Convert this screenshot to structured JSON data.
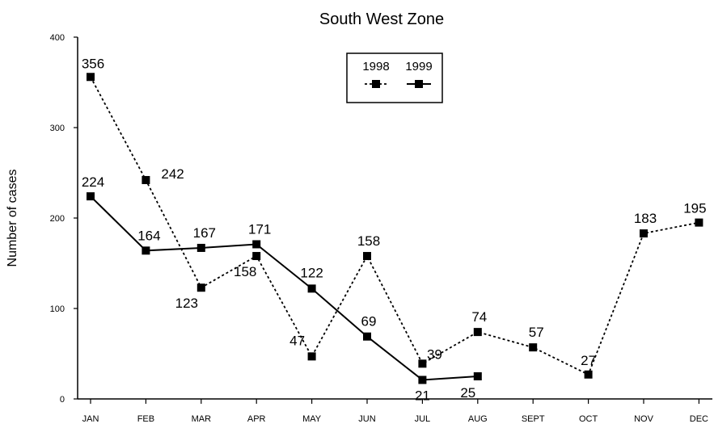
{
  "chart_data": {
    "type": "line",
    "title": "South West Zone",
    "xlabel": "",
    "ylabel": "Number of cases",
    "categories": [
      "JAN",
      "FEB",
      "MAR",
      "APR",
      "MAY",
      "JUN",
      "JUL",
      "AUG",
      "SEPT",
      "OCT",
      "NOV",
      "DEC"
    ],
    "ylim": [
      0,
      400
    ],
    "yticks": [
      "0",
      "100",
      "200",
      "300",
      "400"
    ],
    "grid": false,
    "legend_position": "top-center",
    "series": [
      {
        "name": "1998",
        "style": "dotted",
        "marker": "square",
        "color": "#000000",
        "values": [
          356,
          242,
          123,
          158,
          47,
          158,
          39,
          74,
          57,
          27,
          183,
          195
        ]
      },
      {
        "name": "1999",
        "style": "solid",
        "marker": "square",
        "color": "#000000",
        "values": [
          224,
          164,
          167,
          171,
          122,
          69,
          21,
          25,
          null,
          null,
          null,
          null
        ]
      }
    ]
  }
}
